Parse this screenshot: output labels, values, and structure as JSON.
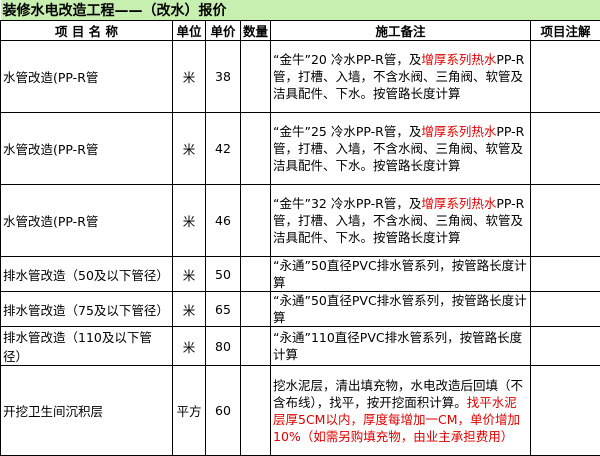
{
  "title": "装修水电改造工程——（改水）报价",
  "table": {
    "headers": [
      "项 目 名 称",
      "单位",
      "单价",
      "数量",
      "施工备注",
      "项目注解"
    ],
    "rows": [
      {
        "name": "水管改造(PP-R管",
        "unit": "米",
        "price": 38,
        "note": [
          {
            "text": "“金牛”20 冷水PP-R管，及"
          },
          {
            "text": "增厚系列热水",
            "highlight": true
          },
          {
            "text": "PP-R管，打槽、入墙，不含水阀、三角阀、软管及洁具配件、下水。按管路长度计算"
          }
        ]
      },
      {
        "name": "水管改造(PP-R管",
        "unit": "米",
        "price": 42,
        "note": [
          {
            "text": "“金牛”25 冷水PP-R管，及"
          },
          {
            "text": "增厚系列热水",
            "highlight": true
          },
          {
            "text": "PP-R管，打槽、入墙，不含水阀、三角阀、软管及洁具配件、下水。按管路长度计算"
          }
        ]
      },
      {
        "name": "水管改造(PP-R管",
        "unit": "米",
        "price": 46,
        "note": [
          {
            "text": "“金牛”32 冷水PP-R管，及"
          },
          {
            "text": "增厚系列热水",
            "highlight": true
          },
          {
            "text": "PP-R管，打槽、入墙，不含水阀、三角阀、软管及洁具配件、下水。按管路长度计算"
          }
        ]
      },
      {
        "name": "排水管改造（50及以下管径）",
        "unit": "米",
        "price": 50,
        "note": [
          {
            "text": "“永通”50直径PVC排水管系列，按管路长度计算"
          }
        ]
      },
      {
        "name": "排水管改造（75及以下管径）",
        "unit": "米",
        "price": 65,
        "note": [
          {
            "text": "“永通”50直径PVC排水管系列，按管路长度计算"
          }
        ]
      },
      {
        "name": "排水管改造（110及以下管径）",
        "unit": "米",
        "price": 80,
        "note": [
          {
            "text": "“永通”110直径PVC排水管系列，按管路长度计算"
          }
        ]
      },
      {
        "name": "开挖卫生间沉积层",
        "unit": "平方",
        "price": 60,
        "note": [
          {
            "text": "挖水泥层，清出填充物，水电改造后回填（不含布线），找平，按开挖面积计算。"
          },
          {
            "text": "找平水泥层厚5CM以内，厚度每增加一CM，单价增加10%（如需另购填充物，由业主承担费用）",
            "highlight": true
          }
        ]
      }
    ]
  }
}
